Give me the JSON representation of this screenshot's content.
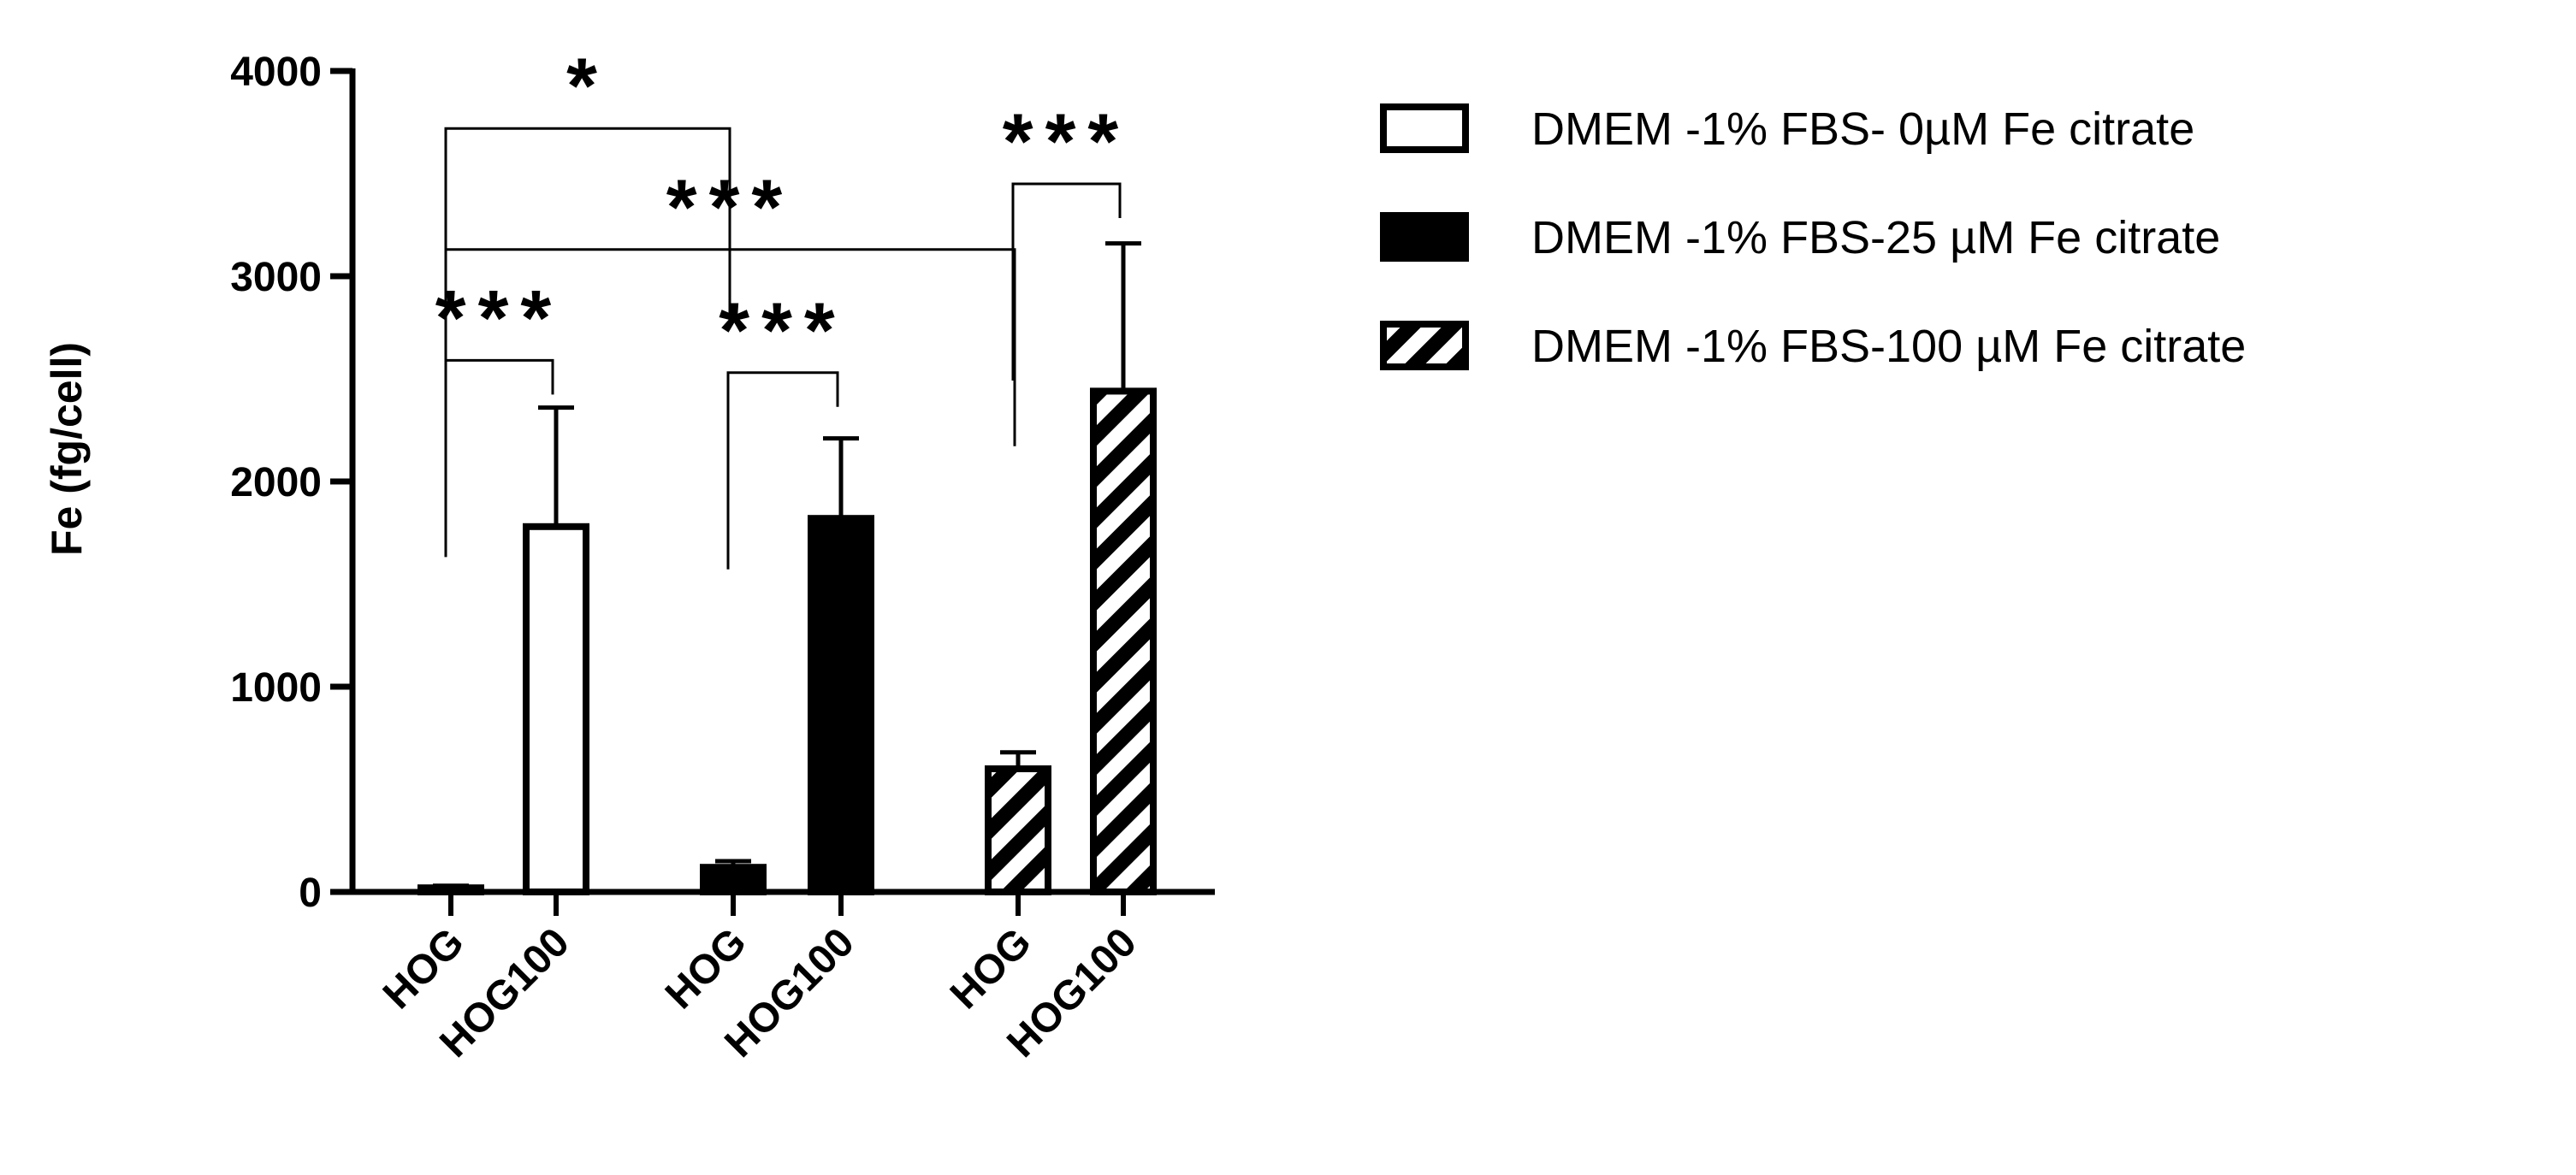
{
  "chart_data": {
    "type": "bar",
    "title": "",
    "xlabel": "",
    "ylabel": "Fe (fg/cell)",
    "ylim": [
      0,
      4000
    ],
    "yticks": [
      0,
      1000,
      2000,
      3000,
      4000
    ],
    "grid": false,
    "legend_position": "right",
    "categories": [
      "HOG",
      "HOG100",
      "HOG",
      "HOG100",
      "HOG",
      "HOG100"
    ],
    "series": [
      {
        "name": "DMEM -1% FBS- 0µM Fe citrate",
        "pattern": "open",
        "color": "#ffffff",
        "indices": [
          0,
          1
        ]
      },
      {
        "name": "DMEM -1% FBS-25 µM Fe citrate",
        "pattern": "solid",
        "color": "#000000",
        "indices": [
          2,
          3
        ]
      },
      {
        "name": "DMEM -1% FBS-100 µM Fe citrate",
        "pattern": "hatched",
        "color": "#ffffff",
        "indices": [
          4,
          5
        ]
      }
    ],
    "values": [
      20,
      1780,
      120,
      1820,
      600,
      2440
    ],
    "errors": [
      10,
      580,
      30,
      390,
      80,
      720
    ],
    "significance": [
      {
        "from": 0,
        "to": 1,
        "label": "***",
        "y": 2590
      },
      {
        "from": 0,
        "to": 2,
        "label": "*",
        "y": 3720
      },
      {
        "from": 0,
        "to": 4,
        "label": "***",
        "y": 3130
      },
      {
        "from": 2,
        "to": 3,
        "label": "***",
        "y": 2530
      },
      {
        "from": 4,
        "to": 5,
        "label": "***",
        "y": 3450
      }
    ]
  }
}
